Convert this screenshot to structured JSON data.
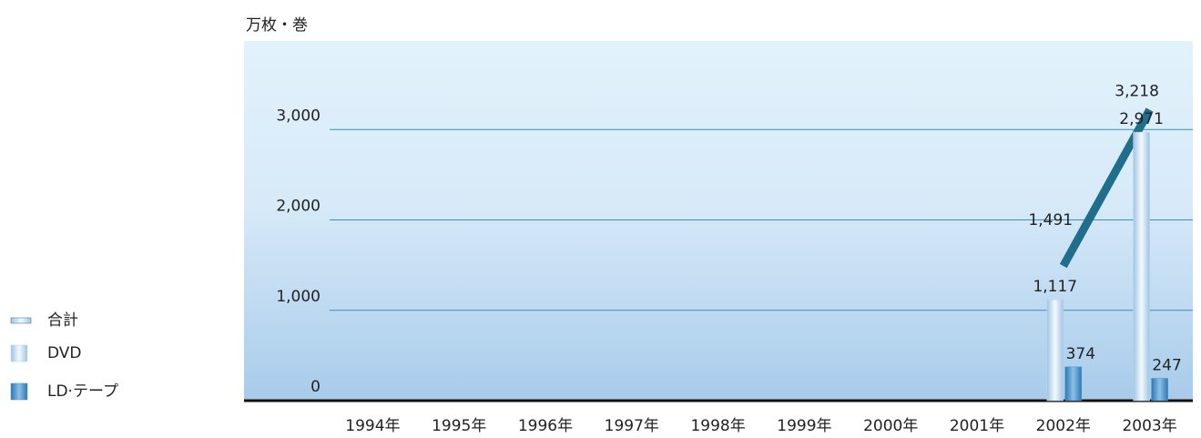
{
  "chart_data": {
    "type": "bar",
    "y_axis_label": "万枚・巻",
    "categories": [
      "1994年",
      "1995年",
      "1996年",
      "1997年",
      "1998年",
      "1999年",
      "2000年",
      "2001年",
      "2002年",
      "2003年"
    ],
    "series": [
      {
        "name": "合計",
        "type": "line",
        "color": "#1f6e8c",
        "values": [
          null,
          null,
          null,
          null,
          null,
          null,
          null,
          null,
          1491,
          3218
        ],
        "value_labels": [
          null,
          null,
          null,
          null,
          null,
          null,
          null,
          null,
          "1,491",
          "3,218"
        ]
      },
      {
        "name": "DVD",
        "type": "bar",
        "color": "#b9d6ee",
        "values": [
          null,
          null,
          null,
          null,
          null,
          null,
          null,
          null,
          1117,
          2971
        ],
        "value_labels": [
          null,
          null,
          null,
          null,
          null,
          null,
          null,
          null,
          "1,117",
          "2,971"
        ]
      },
      {
        "name": "LD·テープ",
        "type": "bar",
        "color": "#4b94c9",
        "values": [
          null,
          null,
          null,
          null,
          null,
          null,
          null,
          null,
          374,
          247
        ]
      }
    ],
    "ylim": [
      0,
      4000
    ],
    "yticks": [
      0,
      {
        "value": 1000,
        "label": "1,000"
      },
      {
        "value": 2000,
        "label": "2,000"
      },
      {
        "value": 3000,
        "label": "3,000"
      }
    ],
    "grid": true
  }
}
